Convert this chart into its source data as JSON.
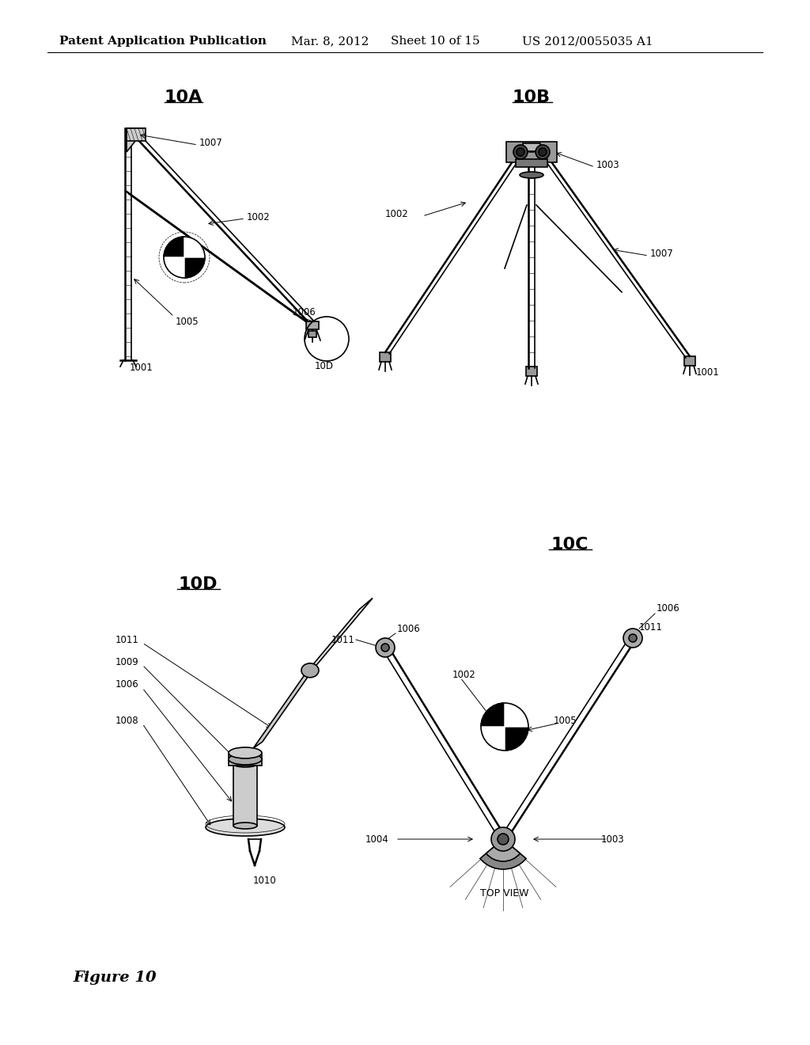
{
  "bg_color": "#ffffff",
  "header_text": "Patent Application Publication",
  "header_date": "Mar. 8, 2012",
  "header_sheet": "Sheet 10 of 15",
  "header_patent": "US 2012/0055035 A1",
  "figure_label": "Figure 10",
  "label_fs": 8.5,
  "title_fs": 11,
  "fig_title_fs": 16
}
